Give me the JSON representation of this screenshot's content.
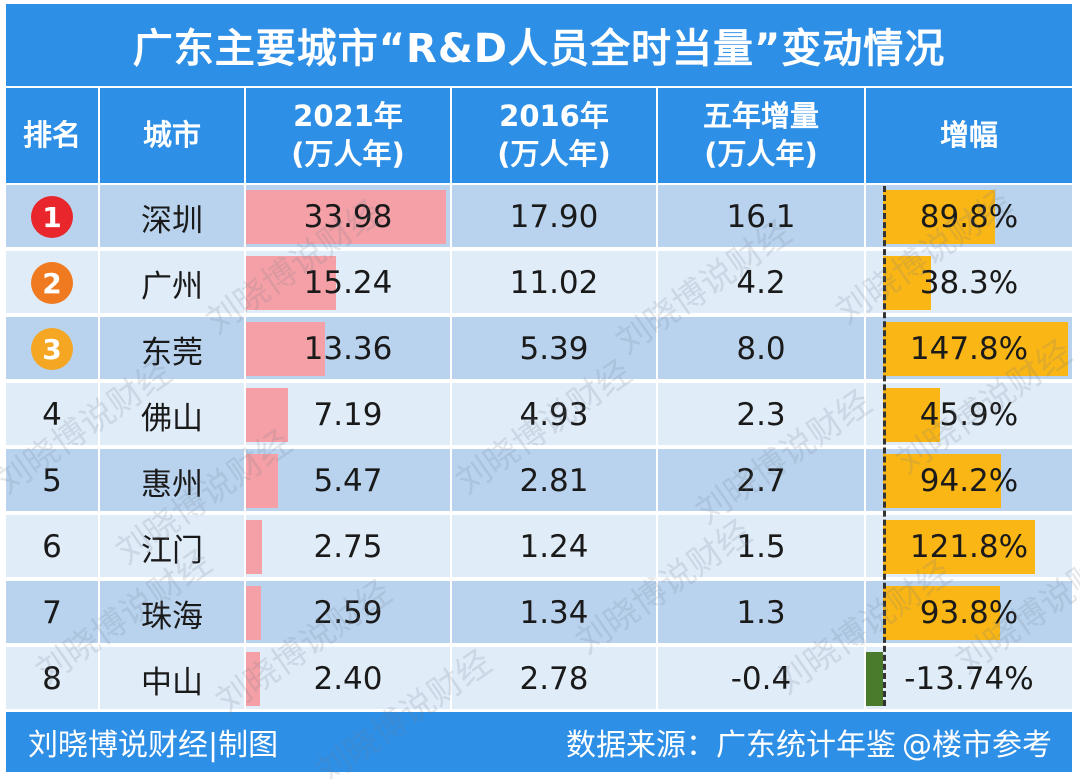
{
  "title": "广东主要城市“R&D人员全时当量”变动情况",
  "headers": {
    "rank": "排名",
    "city": "城市",
    "y2021": [
      "2021年",
      "(万人年)"
    ],
    "y2016": [
      "2016年",
      "(万人年)"
    ],
    "increase": [
      "五年增量",
      "(万人年)"
    ],
    "growth": "增幅"
  },
  "colors": {
    "header_bg": "#2e8fe6",
    "bar_2021": "#f4a0a6",
    "bar_growth_positive": "#f9b615",
    "bar_growth_negative": "#4a7a2c",
    "rank1": "#e8262b",
    "rank2": "#f07a1f",
    "rank3": "#f5a623"
  },
  "chart_data": {
    "type": "table",
    "title": "广东主要城市“R&D人员全时当量”变动情况",
    "columns": [
      "排名",
      "城市",
      "2021年(万人年)",
      "2016年(万人年)",
      "五年增量(万人年)",
      "增幅"
    ],
    "rows": [
      {
        "rank": "1",
        "city": "深圳",
        "v2021": 33.98,
        "v2021_label": "33.98",
        "v2016": "17.90",
        "increase": "16.1",
        "growth": 89.8,
        "growth_label": "89.8%"
      },
      {
        "rank": "2",
        "city": "广州",
        "v2021": 15.24,
        "v2021_label": "15.24",
        "v2016": "11.02",
        "increase": "4.2",
        "growth": 38.3,
        "growth_label": "38.3%"
      },
      {
        "rank": "3",
        "city": "东莞",
        "v2021": 13.36,
        "v2021_label": "13.36",
        "v2016": "5.39",
        "increase": "8.0",
        "growth": 147.8,
        "growth_label": "147.8%"
      },
      {
        "rank": "4",
        "city": "佛山",
        "v2021": 7.19,
        "v2021_label": "7.19",
        "v2016": "4.93",
        "increase": "2.3",
        "growth": 45.9,
        "growth_label": "45.9%"
      },
      {
        "rank": "5",
        "city": "惠州",
        "v2021": 5.47,
        "v2021_label": "5.47",
        "v2016": "2.81",
        "increase": "2.7",
        "growth": 94.2,
        "growth_label": "94.2%"
      },
      {
        "rank": "6",
        "city": "江门",
        "v2021": 2.75,
        "v2021_label": "2.75",
        "v2016": "1.24",
        "increase": "1.5",
        "growth": 121.8,
        "growth_label": "121.8%"
      },
      {
        "rank": "7",
        "city": "珠海",
        "v2021": 2.59,
        "v2021_label": "2.59",
        "v2016": "1.34",
        "increase": "1.3",
        "growth": 93.8,
        "growth_label": "93.8%"
      },
      {
        "rank": "8",
        "city": "中山",
        "v2021": 2.4,
        "v2021_label": "2.40",
        "v2016": "2.78",
        "increase": "-0.4",
        "growth": -13.74,
        "growth_label": "-13.74%"
      }
    ],
    "v2021_max": 33.98,
    "growth_max": 147.8
  },
  "footer": {
    "left": "刘晓博说财经|制图",
    "right": "数据来源：广东统计年鉴",
    "logo": "@楼市参考"
  },
  "watermark": "刘晓博说财经"
}
